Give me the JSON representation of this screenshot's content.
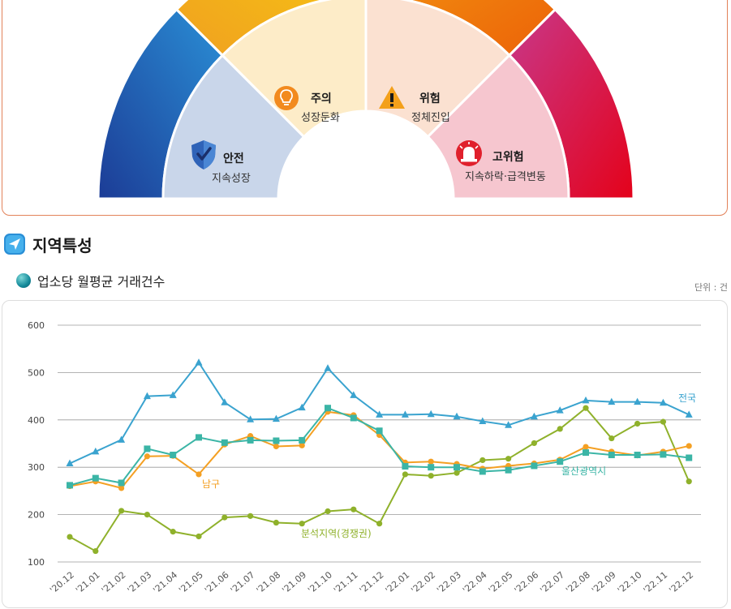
{
  "gauge": {
    "segments": [
      {
        "title": "안전",
        "subtitle": "지속성장",
        "color": "#c9d6ea",
        "icon": "shield-check-icon"
      },
      {
        "title": "주의",
        "subtitle": "성장둔화",
        "color": "#fdecc8",
        "icon": "lightbulb-icon"
      },
      {
        "title": "위험",
        "subtitle": "정체진입",
        "color": "#fbe1d1",
        "icon": "warning-icon"
      },
      {
        "title": "고위험",
        "subtitle": "지속하락·급격변동",
        "color": "#f6c6cf",
        "icon": "siren-icon"
      }
    ],
    "colors": {
      "blue": [
        "#1c3c96",
        "#2a8fd6"
      ],
      "yellow": [
        "#f0a020",
        "#f7c911"
      ],
      "orange": [
        "#f39a12",
        "#ec6208"
      ],
      "red": [
        "#c8388a",
        "#e4021a"
      ]
    }
  },
  "section": {
    "title": "지역특성"
  },
  "chart": {
    "title": "업소당 월평균 거래건수",
    "unit": "단위 : 건"
  },
  "chart_data": {
    "type": "line",
    "x": [
      "'20.12",
      "'21.01",
      "'21.02",
      "'21.03",
      "'21.04",
      "'21.05",
      "'21.06",
      "'21.07",
      "'21.08",
      "'21.09",
      "'21.10",
      "'21.11",
      "'21.12",
      "'22.01",
      "'22.02",
      "'22.03",
      "'22.04",
      "'22.05",
      "'22.06",
      "'22.07",
      "'22.08",
      "'22.09",
      "'22.10",
      "'22.11",
      "'22.12"
    ],
    "yticks": [
      100,
      200,
      300,
      400,
      500,
      600
    ],
    "ylim": [
      100,
      600
    ],
    "grid": true,
    "series": [
      {
        "name": "전국",
        "color": "#3aa3cf",
        "marker": "triangle",
        "values": [
          308,
          333,
          358,
          450,
          452,
          521,
          437,
          401,
          402,
          426,
          509,
          452,
          411,
          411,
          412,
          407,
          397,
          389,
          407,
          420,
          441,
          438,
          438,
          436,
          411
        ]
      },
      {
        "name": "남구",
        "color": "#f4a023",
        "marker": "circle",
        "values": [
          260,
          270,
          256,
          323,
          324,
          285,
          348,
          366,
          344,
          346,
          417,
          410,
          368,
          310,
          312,
          307,
          297,
          303,
          308,
          316,
          343,
          333,
          325,
          333,
          345
        ]
      },
      {
        "name": "울산광역시",
        "color": "#3bb5a6",
        "marker": "square",
        "values": [
          262,
          277,
          267,
          339,
          326,
          363,
          352,
          357,
          356,
          357,
          425,
          404,
          377,
          302,
          300,
          300,
          291,
          294,
          303,
          312,
          331,
          326,
          326,
          327,
          320
        ]
      },
      {
        "name": "분석지역(경쟁권)",
        "color": "#8fb12b",
        "marker": "circle",
        "values": [
          153,
          123,
          208,
          200,
          164,
          154,
          194,
          197,
          183,
          181,
          207,
          211,
          181,
          285,
          282,
          288,
          315,
          318,
          351,
          381,
          425,
          361,
          392,
          396,
          270
        ]
      }
    ]
  }
}
